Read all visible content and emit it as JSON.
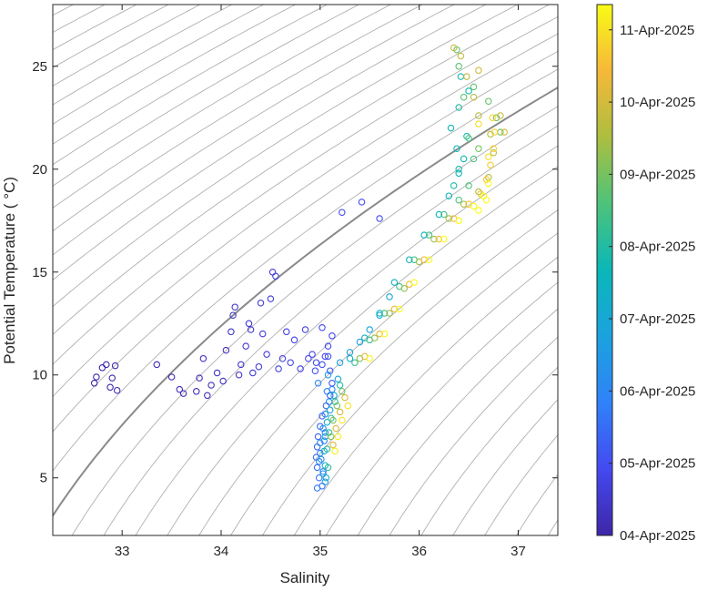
{
  "chart_data": {
    "type": "scatter",
    "xlabel": "Salinity",
    "ylabel": "Potential Temperature ( °C)",
    "xlim": [
      32.3,
      37.4
    ],
    "ylim": [
      2.2,
      28.0
    ],
    "x_ticks": [
      "33",
      "34",
      "35",
      "36",
      "37"
    ],
    "y_ticks": [
      "5",
      "10",
      "15",
      "20",
      "25"
    ],
    "grid": false,
    "background_contours": "density isopycnals (gray)",
    "marker": "open circle",
    "colormap": "parula",
    "colorbar": {
      "label_format": "date",
      "range_days": [
        0,
        7.35
      ],
      "tick_labels": [
        "04-Apr-2025",
        "05-Apr-2025",
        "06-Apr-2025",
        "07-Apr-2025",
        "08-Apr-2025",
        "09-Apr-2025",
        "10-Apr-2025",
        "11-Apr-2025"
      ]
    },
    "series": [
      {
        "date": "04-Apr-2025",
        "points": [
          [
            32.72,
            9.6
          ],
          [
            32.74,
            9.9
          ],
          [
            32.8,
            10.35
          ],
          [
            32.84,
            10.5
          ],
          [
            32.88,
            9.4
          ],
          [
            32.9,
            9.85
          ],
          [
            32.93,
            10.45
          ],
          [
            32.95,
            9.25
          ],
          [
            33.35,
            10.5
          ],
          [
            33.5,
            9.9
          ],
          [
            33.58,
            9.3
          ],
          [
            33.62,
            9.1
          ],
          [
            33.75,
            9.2
          ],
          [
            33.78,
            9.85
          ],
          [
            33.82,
            10.8
          ],
          [
            33.86,
            9.0
          ],
          [
            33.9,
            9.5
          ],
          [
            33.96,
            10.1
          ],
          [
            34.02,
            9.7
          ],
          [
            34.05,
            11.2
          ],
          [
            34.1,
            12.1
          ],
          [
            34.12,
            12.9
          ],
          [
            34.14,
            13.3
          ],
          [
            34.18,
            10.0
          ],
          [
            34.2,
            10.5
          ],
          [
            34.25,
            11.4
          ],
          [
            34.28,
            12.5
          ],
          [
            34.3,
            12.2
          ],
          [
            34.32,
            10.1
          ],
          [
            34.38,
            10.4
          ],
          [
            34.4,
            13.5
          ],
          [
            34.42,
            12.0
          ],
          [
            34.46,
            11.0
          ],
          [
            34.5,
            13.7
          ],
          [
            34.52,
            15.0
          ],
          [
            34.55,
            14.8
          ],
          [
            34.58,
            10.3
          ],
          [
            34.62,
            10.8
          ],
          [
            34.66,
            12.1
          ],
          [
            34.7,
            10.6
          ],
          [
            34.74,
            11.7
          ],
          [
            34.8,
            10.3
          ],
          [
            34.85,
            12.2
          ],
          [
            34.88,
            10.8
          ],
          [
            34.92,
            11.0
          ],
          [
            34.96,
            10.6
          ],
          [
            35.02,
            12.3
          ],
          [
            35.05,
            10.9
          ],
          [
            35.08,
            11.4
          ],
          [
            35.12,
            11.9
          ],
          [
            35.22,
            17.9
          ],
          [
            35.42,
            18.4
          ],
          [
            35.6,
            17.6
          ]
        ]
      },
      {
        "date": "05-Apr-2025",
        "points": [
          [
            34.95,
            10.2
          ],
          [
            35.02,
            10.5
          ],
          [
            35.08,
            10.9
          ],
          [
            35.1,
            10.2
          ],
          [
            35.12,
            9.6
          ],
          [
            35.1,
            9.0
          ],
          [
            35.06,
            8.5
          ],
          [
            35.02,
            8.0
          ],
          [
            35.0,
            7.5
          ],
          [
            34.98,
            7.0
          ],
          [
            34.97,
            6.5
          ],
          [
            34.96,
            6.0
          ],
          [
            34.97,
            5.5
          ],
          [
            34.99,
            5.0
          ],
          [
            35.02,
            4.6
          ],
          [
            34.97,
            4.5
          ],
          [
            35.05,
            7.2
          ],
          [
            35.04,
            6.8
          ],
          [
            35.0,
            6.2
          ],
          [
            34.99,
            5.8
          ],
          [
            35.03,
            5.3
          ],
          [
            35.07,
            9.2
          ],
          [
            34.98,
            9.6
          ]
        ]
      },
      {
        "date": "06-Apr-2025",
        "points": [
          [
            35.12,
            9.3
          ],
          [
            35.09,
            8.7
          ],
          [
            35.05,
            8.1
          ],
          [
            35.03,
            7.4
          ],
          [
            35.0,
            6.7
          ],
          [
            35.01,
            5.9
          ],
          [
            35.03,
            5.2
          ],
          [
            35.05,
            4.8
          ],
          [
            35.08,
            10.0
          ],
          [
            35.2,
            10.6
          ],
          [
            35.3,
            11.1
          ],
          [
            35.4,
            11.6
          ],
          [
            35.5,
            12.2
          ],
          [
            35.6,
            12.9
          ],
          [
            35.7,
            13.8
          ]
        ]
      },
      {
        "date": "07-Apr-2025",
        "points": [
          [
            35.18,
            9.8
          ],
          [
            35.14,
            9.0
          ],
          [
            35.1,
            8.3
          ],
          [
            35.07,
            7.7
          ],
          [
            35.05,
            7.0
          ],
          [
            35.04,
            6.3
          ],
          [
            35.05,
            5.6
          ],
          [
            35.06,
            5.0
          ],
          [
            35.3,
            10.8
          ],
          [
            35.45,
            11.8
          ],
          [
            35.6,
            13.0
          ],
          [
            35.75,
            14.5
          ],
          [
            35.9,
            15.6
          ],
          [
            36.05,
            16.8
          ],
          [
            36.2,
            17.8
          ],
          [
            36.3,
            18.7
          ],
          [
            36.4,
            19.8
          ],
          [
            36.38,
            21.0
          ],
          [
            36.32,
            22.0
          ],
          [
            36.45,
            20.5
          ],
          [
            36.5,
            23.8
          ],
          [
            36.42,
            24.5
          ],
          [
            36.4,
            20.0
          ],
          [
            36.48,
            21.6
          ],
          [
            36.35,
            19.2
          ],
          [
            36.4,
            23.0
          ]
        ]
      },
      {
        "date": "08-Apr-2025",
        "points": [
          [
            35.2,
            9.5
          ],
          [
            35.15,
            8.7
          ],
          [
            35.11,
            7.9
          ],
          [
            35.09,
            7.2
          ],
          [
            35.07,
            6.4
          ],
          [
            35.08,
            5.5
          ],
          [
            35.35,
            10.6
          ],
          [
            35.5,
            11.7
          ],
          [
            35.65,
            13.0
          ],
          [
            35.8,
            14.3
          ],
          [
            35.95,
            15.6
          ],
          [
            36.1,
            16.8
          ],
          [
            36.25,
            17.8
          ],
          [
            36.4,
            18.5
          ],
          [
            36.5,
            19.2
          ],
          [
            36.55,
            20.5
          ],
          [
            36.5,
            21.5
          ],
          [
            36.45,
            23.5
          ],
          [
            36.4,
            25.0
          ],
          [
            36.38,
            25.8
          ],
          [
            36.55,
            24.0
          ],
          [
            36.7,
            23.3
          ],
          [
            36.78,
            22.5
          ],
          [
            36.82,
            21.8
          ],
          [
            36.6,
            21.0
          ]
        ]
      },
      {
        "date": "09-Apr-2025",
        "points": [
          [
            35.22,
            9.2
          ],
          [
            35.17,
            8.5
          ],
          [
            35.13,
            7.8
          ],
          [
            35.11,
            7.0
          ],
          [
            35.4,
            10.8
          ],
          [
            35.55,
            11.8
          ],
          [
            35.7,
            13.0
          ],
          [
            35.85,
            14.2
          ],
          [
            36.0,
            15.5
          ],
          [
            36.15,
            16.6
          ],
          [
            36.3,
            17.6
          ],
          [
            36.45,
            18.3
          ],
          [
            36.6,
            18.9
          ],
          [
            36.7,
            19.6
          ],
          [
            36.75,
            20.8
          ],
          [
            36.72,
            21.7
          ],
          [
            36.6,
            22.6
          ],
          [
            36.55,
            23.5
          ],
          [
            36.48,
            24.5
          ],
          [
            36.42,
            25.5
          ],
          [
            36.35,
            25.9
          ],
          [
            36.82,
            22.6
          ],
          [
            36.86,
            21.8
          ],
          [
            36.6,
            24.8
          ]
        ]
      },
      {
        "date": "10-Apr-2025",
        "points": [
          [
            35.25,
            8.9
          ],
          [
            35.2,
            8.2
          ],
          [
            35.16,
            7.4
          ],
          [
            35.13,
            6.6
          ],
          [
            35.45,
            10.9
          ],
          [
            35.6,
            12.0
          ],
          [
            35.75,
            13.2
          ],
          [
            35.9,
            14.4
          ],
          [
            36.05,
            15.6
          ],
          [
            36.2,
            16.6
          ],
          [
            36.35,
            17.6
          ],
          [
            36.5,
            18.3
          ],
          [
            36.62,
            18.8
          ],
          [
            36.68,
            19.5
          ],
          [
            36.72,
            20.2
          ],
          [
            36.75,
            21.0
          ],
          [
            36.76,
            21.8
          ],
          [
            36.74,
            22.5
          ],
          [
            36.6,
            22.2
          ],
          [
            36.7,
            20.6
          ]
        ]
      },
      {
        "date": "11-Apr-2025",
        "points": [
          [
            35.28,
            8.5
          ],
          [
            35.22,
            7.8
          ],
          [
            35.18,
            7.0
          ],
          [
            35.15,
            6.3
          ],
          [
            35.5,
            10.8
          ],
          [
            35.65,
            12.0
          ],
          [
            35.8,
            13.2
          ],
          [
            35.95,
            14.5
          ],
          [
            36.1,
            15.6
          ],
          [
            36.25,
            16.6
          ],
          [
            36.4,
            17.5
          ],
          [
            36.55,
            18.2
          ],
          [
            36.65,
            18.7
          ],
          [
            36.7,
            19.3
          ],
          [
            36.68,
            18.5
          ],
          [
            36.6,
            18.0
          ]
        ]
      }
    ]
  }
}
